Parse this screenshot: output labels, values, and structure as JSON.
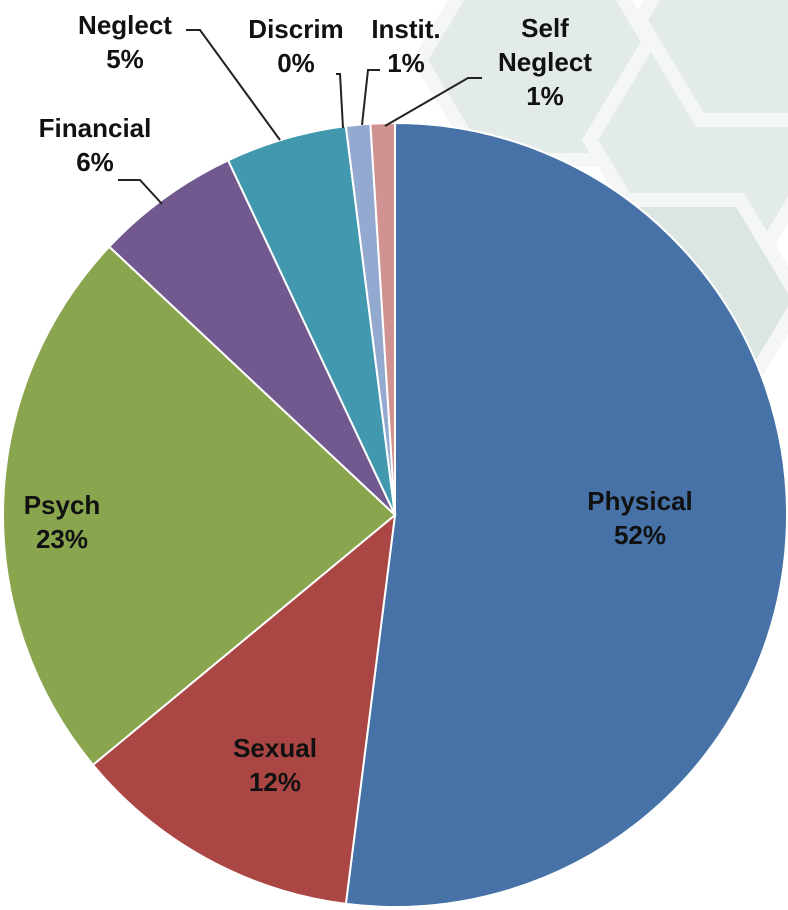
{
  "chart_data": {
    "type": "pie",
    "categories": [
      "Physical",
      "Sexual",
      "Psych",
      "Financial",
      "Neglect",
      "Discrim",
      "Instit.",
      "Self Neglect"
    ],
    "values": [
      52,
      12,
      23,
      6,
      5,
      0,
      1,
      1
    ],
    "value_labels": [
      "52%",
      "12%",
      "23%",
      "6%",
      "5%",
      "0%",
      "1%",
      "1%"
    ],
    "colors": [
      "#4672a8",
      "#aa4643",
      "#89a54e",
      "#71588f",
      "#4198af",
      "#db843d",
      "#93a9cf",
      "#d19392"
    ]
  }
}
